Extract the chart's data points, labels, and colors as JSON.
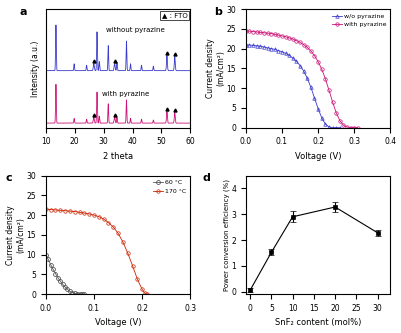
{
  "fig_size": [
    4.02,
    3.33
  ],
  "dpi": 100,
  "panel_a": {
    "color_wo": "#3a3acd",
    "color_wp": "#cc1177",
    "xlabel": "2 theta",
    "ylabel": "Intensity (a.u.)",
    "xlim": [
      10,
      60
    ],
    "label_wo": "without pyrazine",
    "label_wp": "with pyrazine",
    "fto_label": "▲ : FTO",
    "wo_peaks": [
      13.5,
      19.8,
      24.1,
      27.7,
      28.5,
      31.6,
      34.6,
      37.9,
      39.3,
      43.1,
      47.2,
      51.9,
      54.6
    ],
    "wo_heights": [
      1.0,
      0.15,
      0.12,
      0.85,
      0.2,
      0.55,
      0.18,
      0.65,
      0.15,
      0.12,
      0.1,
      0.18,
      0.15
    ],
    "wo_fto": [
      26.6,
      33.8,
      51.9,
      54.6
    ],
    "wp_peaks": [
      13.5,
      19.8,
      24.1,
      27.7,
      28.5,
      31.6,
      34.6,
      37.9,
      39.3,
      43.1,
      47.2,
      51.9,
      54.6
    ],
    "wp_heights": [
      1.0,
      0.12,
      0.1,
      0.8,
      0.18,
      0.5,
      0.15,
      0.6,
      0.12,
      0.1,
      0.08,
      0.15,
      0.12
    ],
    "wp_fto": [
      26.6,
      33.8,
      51.9,
      54.6
    ],
    "fto_marker_wo": [
      26.6,
      33.8,
      51.9,
      54.6
    ],
    "fto_marker_wp": [
      26.6,
      33.8,
      51.9,
      54.6
    ]
  },
  "panel_b": {
    "wo_x": [
      0.0,
      0.01,
      0.02,
      0.03,
      0.04,
      0.05,
      0.06,
      0.07,
      0.08,
      0.09,
      0.1,
      0.11,
      0.12,
      0.13,
      0.14,
      0.15,
      0.16,
      0.17,
      0.18,
      0.19,
      0.2,
      0.21,
      0.22,
      0.23,
      0.24,
      0.25,
      0.26
    ],
    "wo_y": [
      21.0,
      20.9,
      20.8,
      20.7,
      20.6,
      20.4,
      20.2,
      20.0,
      19.8,
      19.5,
      19.2,
      18.8,
      18.3,
      17.6,
      16.8,
      15.7,
      14.3,
      12.5,
      10.2,
      7.5,
      4.8,
      2.5,
      0.9,
      0.2,
      0.0,
      0.0,
      0.0
    ],
    "wp_x": [
      0.0,
      0.01,
      0.02,
      0.03,
      0.04,
      0.05,
      0.06,
      0.07,
      0.08,
      0.09,
      0.1,
      0.11,
      0.12,
      0.13,
      0.14,
      0.15,
      0.16,
      0.17,
      0.18,
      0.19,
      0.2,
      0.21,
      0.22,
      0.23,
      0.24,
      0.25,
      0.26,
      0.27,
      0.28,
      0.29,
      0.3,
      0.31
    ],
    "wp_y": [
      24.5,
      24.4,
      24.3,
      24.2,
      24.1,
      24.0,
      23.9,
      23.8,
      23.6,
      23.4,
      23.2,
      23.0,
      22.7,
      22.4,
      22.0,
      21.6,
      21.0,
      20.3,
      19.4,
      18.2,
      16.7,
      14.8,
      12.4,
      9.5,
      6.5,
      3.8,
      1.8,
      0.6,
      0.15,
      0.02,
      0.0,
      0.0
    ],
    "color_wo": "#3a3acd",
    "color_wp": "#cc1177",
    "xlabel": "Voltage (V)",
    "ylabel": "Current density\n(mA/cm²)",
    "xlim": [
      0,
      0.4
    ],
    "ylim": [
      0,
      30
    ],
    "label_wo": "w/o pyrazine",
    "label_wp": "with pyrazine"
  },
  "panel_c": {
    "c60_x": [
      0.0,
      0.005,
      0.01,
      0.015,
      0.02,
      0.025,
      0.03,
      0.035,
      0.04,
      0.045,
      0.05,
      0.055,
      0.06,
      0.065,
      0.07,
      0.075,
      0.08
    ],
    "c60_y": [
      10.0,
      8.8,
      7.5,
      6.3,
      5.2,
      4.2,
      3.3,
      2.5,
      1.8,
      1.2,
      0.7,
      0.4,
      0.2,
      0.08,
      0.03,
      0.01,
      0.0
    ],
    "c170_x": [
      0.0,
      0.01,
      0.02,
      0.03,
      0.04,
      0.05,
      0.06,
      0.07,
      0.08,
      0.09,
      0.1,
      0.11,
      0.12,
      0.13,
      0.14,
      0.15,
      0.16,
      0.17,
      0.18,
      0.19,
      0.2,
      0.205,
      0.21
    ],
    "c170_y": [
      21.5,
      21.4,
      21.3,
      21.2,
      21.1,
      21.0,
      20.9,
      20.7,
      20.5,
      20.3,
      20.0,
      19.6,
      19.0,
      18.1,
      17.0,
      15.4,
      13.2,
      10.4,
      7.2,
      3.8,
      1.2,
      0.3,
      0.0
    ],
    "color_60": "#555555",
    "color_170": "#cc2200",
    "xlabel": "Voltage (V)",
    "ylabel": "Current density\n(mA/cm²)",
    "xlim": [
      0,
      0.3
    ],
    "ylim": [
      0,
      30
    ],
    "label_60": "60 °C",
    "label_170": "170 °C"
  },
  "panel_d": {
    "x": [
      0,
      5,
      10,
      20,
      30
    ],
    "y": [
      0.05,
      1.52,
      2.9,
      3.28,
      2.28
    ],
    "yerr": [
      0.08,
      0.12,
      0.22,
      0.18,
      0.12
    ],
    "color": "#000000",
    "xlabel": "SnF₂ content (mol%)",
    "ylabel": "Power conversion efficiency (%)",
    "xlim": [
      -1,
      33
    ],
    "ylim": [
      -0.1,
      4.5
    ],
    "yticks": [
      0,
      1,
      2,
      3,
      4
    ],
    "xticks": [
      0,
      5,
      10,
      15,
      20,
      25,
      30
    ]
  }
}
